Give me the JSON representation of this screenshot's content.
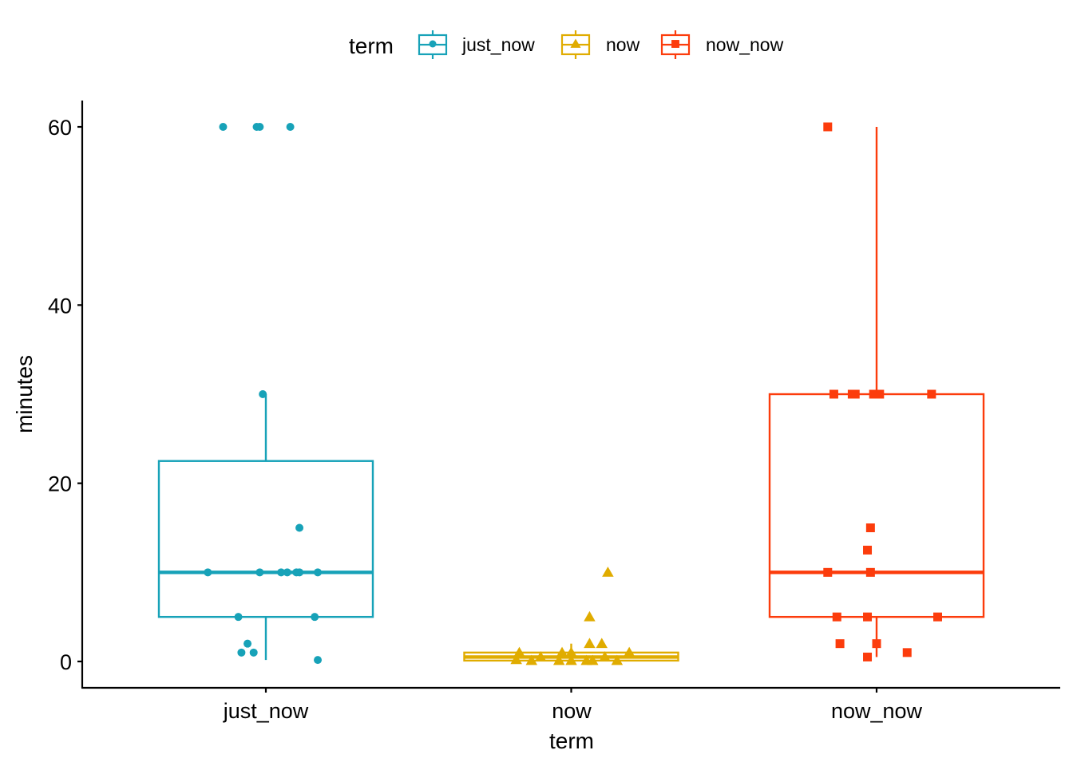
{
  "chart_data": {
    "type": "boxplot",
    "xlabel": "term",
    "ylabel": "minutes",
    "ylim": [
      -3,
      63
    ],
    "yticks": [
      0,
      20,
      40,
      60
    ],
    "grid": false,
    "legend": {
      "title": "term",
      "placement": "top",
      "entries": [
        "just_now",
        "now",
        "now_now"
      ]
    },
    "categories": [
      "just_now",
      "now",
      "now_now"
    ],
    "series": [
      {
        "name": "just_now",
        "color": "#17a2b8",
        "marker": "circle",
        "box": {
          "whisker_low": 0.17,
          "q1": 5,
          "median": 10,
          "q3": 22.5,
          "whisker_high": 30
        },
        "points": [
          {
            "dx": -0.14,
            "y": 60
          },
          {
            "dx": -0.03,
            "y": 60
          },
          {
            "dx": -0.02,
            "y": 60
          },
          {
            "dx": 0.08,
            "y": 60
          },
          {
            "dx": -0.01,
            "y": 30
          },
          {
            "dx": 0.11,
            "y": 15
          },
          {
            "dx": -0.19,
            "y": 10
          },
          {
            "dx": -0.02,
            "y": 10
          },
          {
            "dx": 0.05,
            "y": 10
          },
          {
            "dx": 0.07,
            "y": 10
          },
          {
            "dx": 0.1,
            "y": 10
          },
          {
            "dx": 0.11,
            "y": 10
          },
          {
            "dx": 0.17,
            "y": 10
          },
          {
            "dx": -0.09,
            "y": 5
          },
          {
            "dx": 0.16,
            "y": 5
          },
          {
            "dx": -0.06,
            "y": 2
          },
          {
            "dx": -0.08,
            "y": 1
          },
          {
            "dx": -0.04,
            "y": 1
          },
          {
            "dx": 0.17,
            "y": 0.17
          }
        ]
      },
      {
        "name": "now",
        "color": "#e0ac00",
        "marker": "triangle",
        "box": {
          "whisker_low": 0,
          "q1": 0.1,
          "median": 0.5,
          "q3": 1,
          "whisker_high": 2
        },
        "points": [
          {
            "dx": 0.12,
            "y": 10
          },
          {
            "dx": 0.06,
            "y": 5
          },
          {
            "dx": 0.06,
            "y": 2
          },
          {
            "dx": 0.1,
            "y": 2
          },
          {
            "dx": -0.17,
            "y": 1
          },
          {
            "dx": -0.03,
            "y": 1
          },
          {
            "dx": 0.0,
            "y": 1
          },
          {
            "dx": 0.19,
            "y": 1
          },
          {
            "dx": -0.1,
            "y": 0.5
          },
          {
            "dx": 0.11,
            "y": 0.5
          },
          {
            "dx": -0.18,
            "y": 0.2
          },
          {
            "dx": -0.13,
            "y": 0.1
          },
          {
            "dx": -0.04,
            "y": 0.1
          },
          {
            "dx": 0.0,
            "y": 0.1
          },
          {
            "dx": 0.05,
            "y": 0.1
          },
          {
            "dx": 0.07,
            "y": 0.1
          },
          {
            "dx": 0.15,
            "y": 0.1
          }
        ]
      },
      {
        "name": "now_now",
        "color": "#fc3c0c",
        "marker": "square",
        "box": {
          "whisker_low": 0.5,
          "q1": 5,
          "median": 10,
          "q3": 30,
          "whisker_high": 60
        },
        "points": [
          {
            "dx": -0.16,
            "y": 60
          },
          {
            "dx": -0.14,
            "y": 30
          },
          {
            "dx": -0.08,
            "y": 30
          },
          {
            "dx": -0.07,
            "y": 30
          },
          {
            "dx": -0.01,
            "y": 30
          },
          {
            "dx": 0.01,
            "y": 30
          },
          {
            "dx": 0.18,
            "y": 30
          },
          {
            "dx": -0.02,
            "y": 15
          },
          {
            "dx": -0.03,
            "y": 12.5
          },
          {
            "dx": -0.16,
            "y": 10
          },
          {
            "dx": -0.02,
            "y": 10
          },
          {
            "dx": -0.13,
            "y": 5
          },
          {
            "dx": -0.03,
            "y": 5
          },
          {
            "dx": 0.2,
            "y": 5
          },
          {
            "dx": -0.12,
            "y": 2
          },
          {
            "dx": 0.0,
            "y": 2
          },
          {
            "dx": 0.1,
            "y": 1
          },
          {
            "dx": -0.03,
            "y": 0.5
          }
        ]
      }
    ]
  }
}
